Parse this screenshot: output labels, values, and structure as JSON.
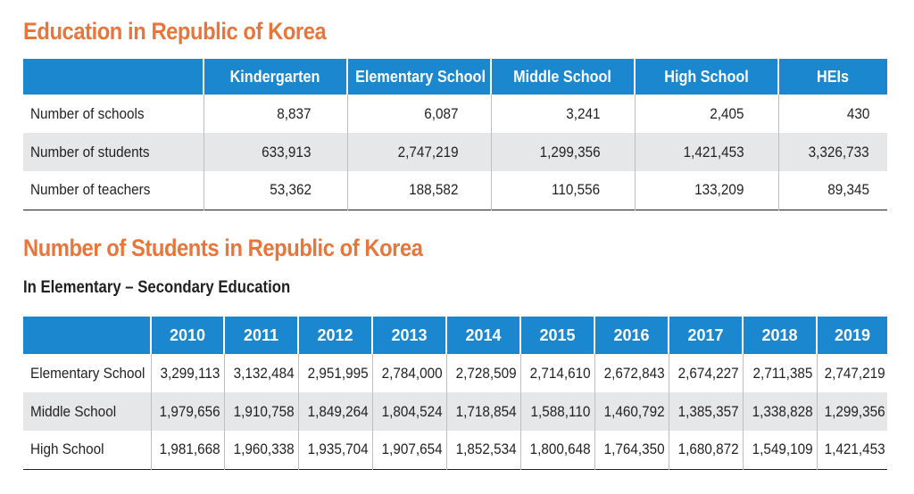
{
  "section1": {
    "title": "Education in Republic of Korea",
    "columns": [
      "",
      "Kindergarten",
      "Elementary School",
      "Middle School",
      "High School",
      "HEIs"
    ],
    "rows": [
      {
        "label": "Number of schools",
        "values": [
          "8,837",
          "6,087",
          "3,241",
          "2,405",
          "430"
        ]
      },
      {
        "label": "Number of students",
        "values": [
          "633,913",
          "2,747,219",
          "1,299,356",
          "1,421,453",
          "3,326,733"
        ]
      },
      {
        "label": "Number of teachers",
        "values": [
          "53,362",
          "188,582",
          "110,556",
          "133,209",
          "89,345"
        ]
      }
    ]
  },
  "section2": {
    "title": "Number of Students in Republic of Korea",
    "subtitle": "In Elementary – Secondary Education",
    "columns": [
      "",
      "2010",
      "2011",
      "2012",
      "2013",
      "2014",
      "2015",
      "2016",
      "2017",
      "2018",
      "2019"
    ],
    "rows": [
      {
        "label": "Elementary School",
        "values": [
          "3,299,113",
          "3,132,484",
          "2,951,995",
          "2,784,000",
          "2,728,509",
          "2,714,610",
          "2,672,843",
          "2,674,227",
          "2,711,385",
          "2,747,219"
        ]
      },
      {
        "label": "Middle School",
        "values": [
          "1,979,656",
          "1,910,758",
          "1,849,264",
          "1,804,524",
          "1,718,854",
          "1,588,110",
          "1,460,792",
          "1,385,357",
          "1,338,828",
          "1,299,356"
        ]
      },
      {
        "label": "High School",
        "values": [
          "1,981,668",
          "1,960,338",
          "1,935,704",
          "1,907,654",
          "1,852,534",
          "1,800,648",
          "1,764,350",
          "1,680,872",
          "1,549,109",
          "1,421,453"
        ]
      }
    ]
  },
  "colors": {
    "title": "#e8763a",
    "header_bg": "#1a87cf",
    "row_shade": "#e6e7e8"
  }
}
